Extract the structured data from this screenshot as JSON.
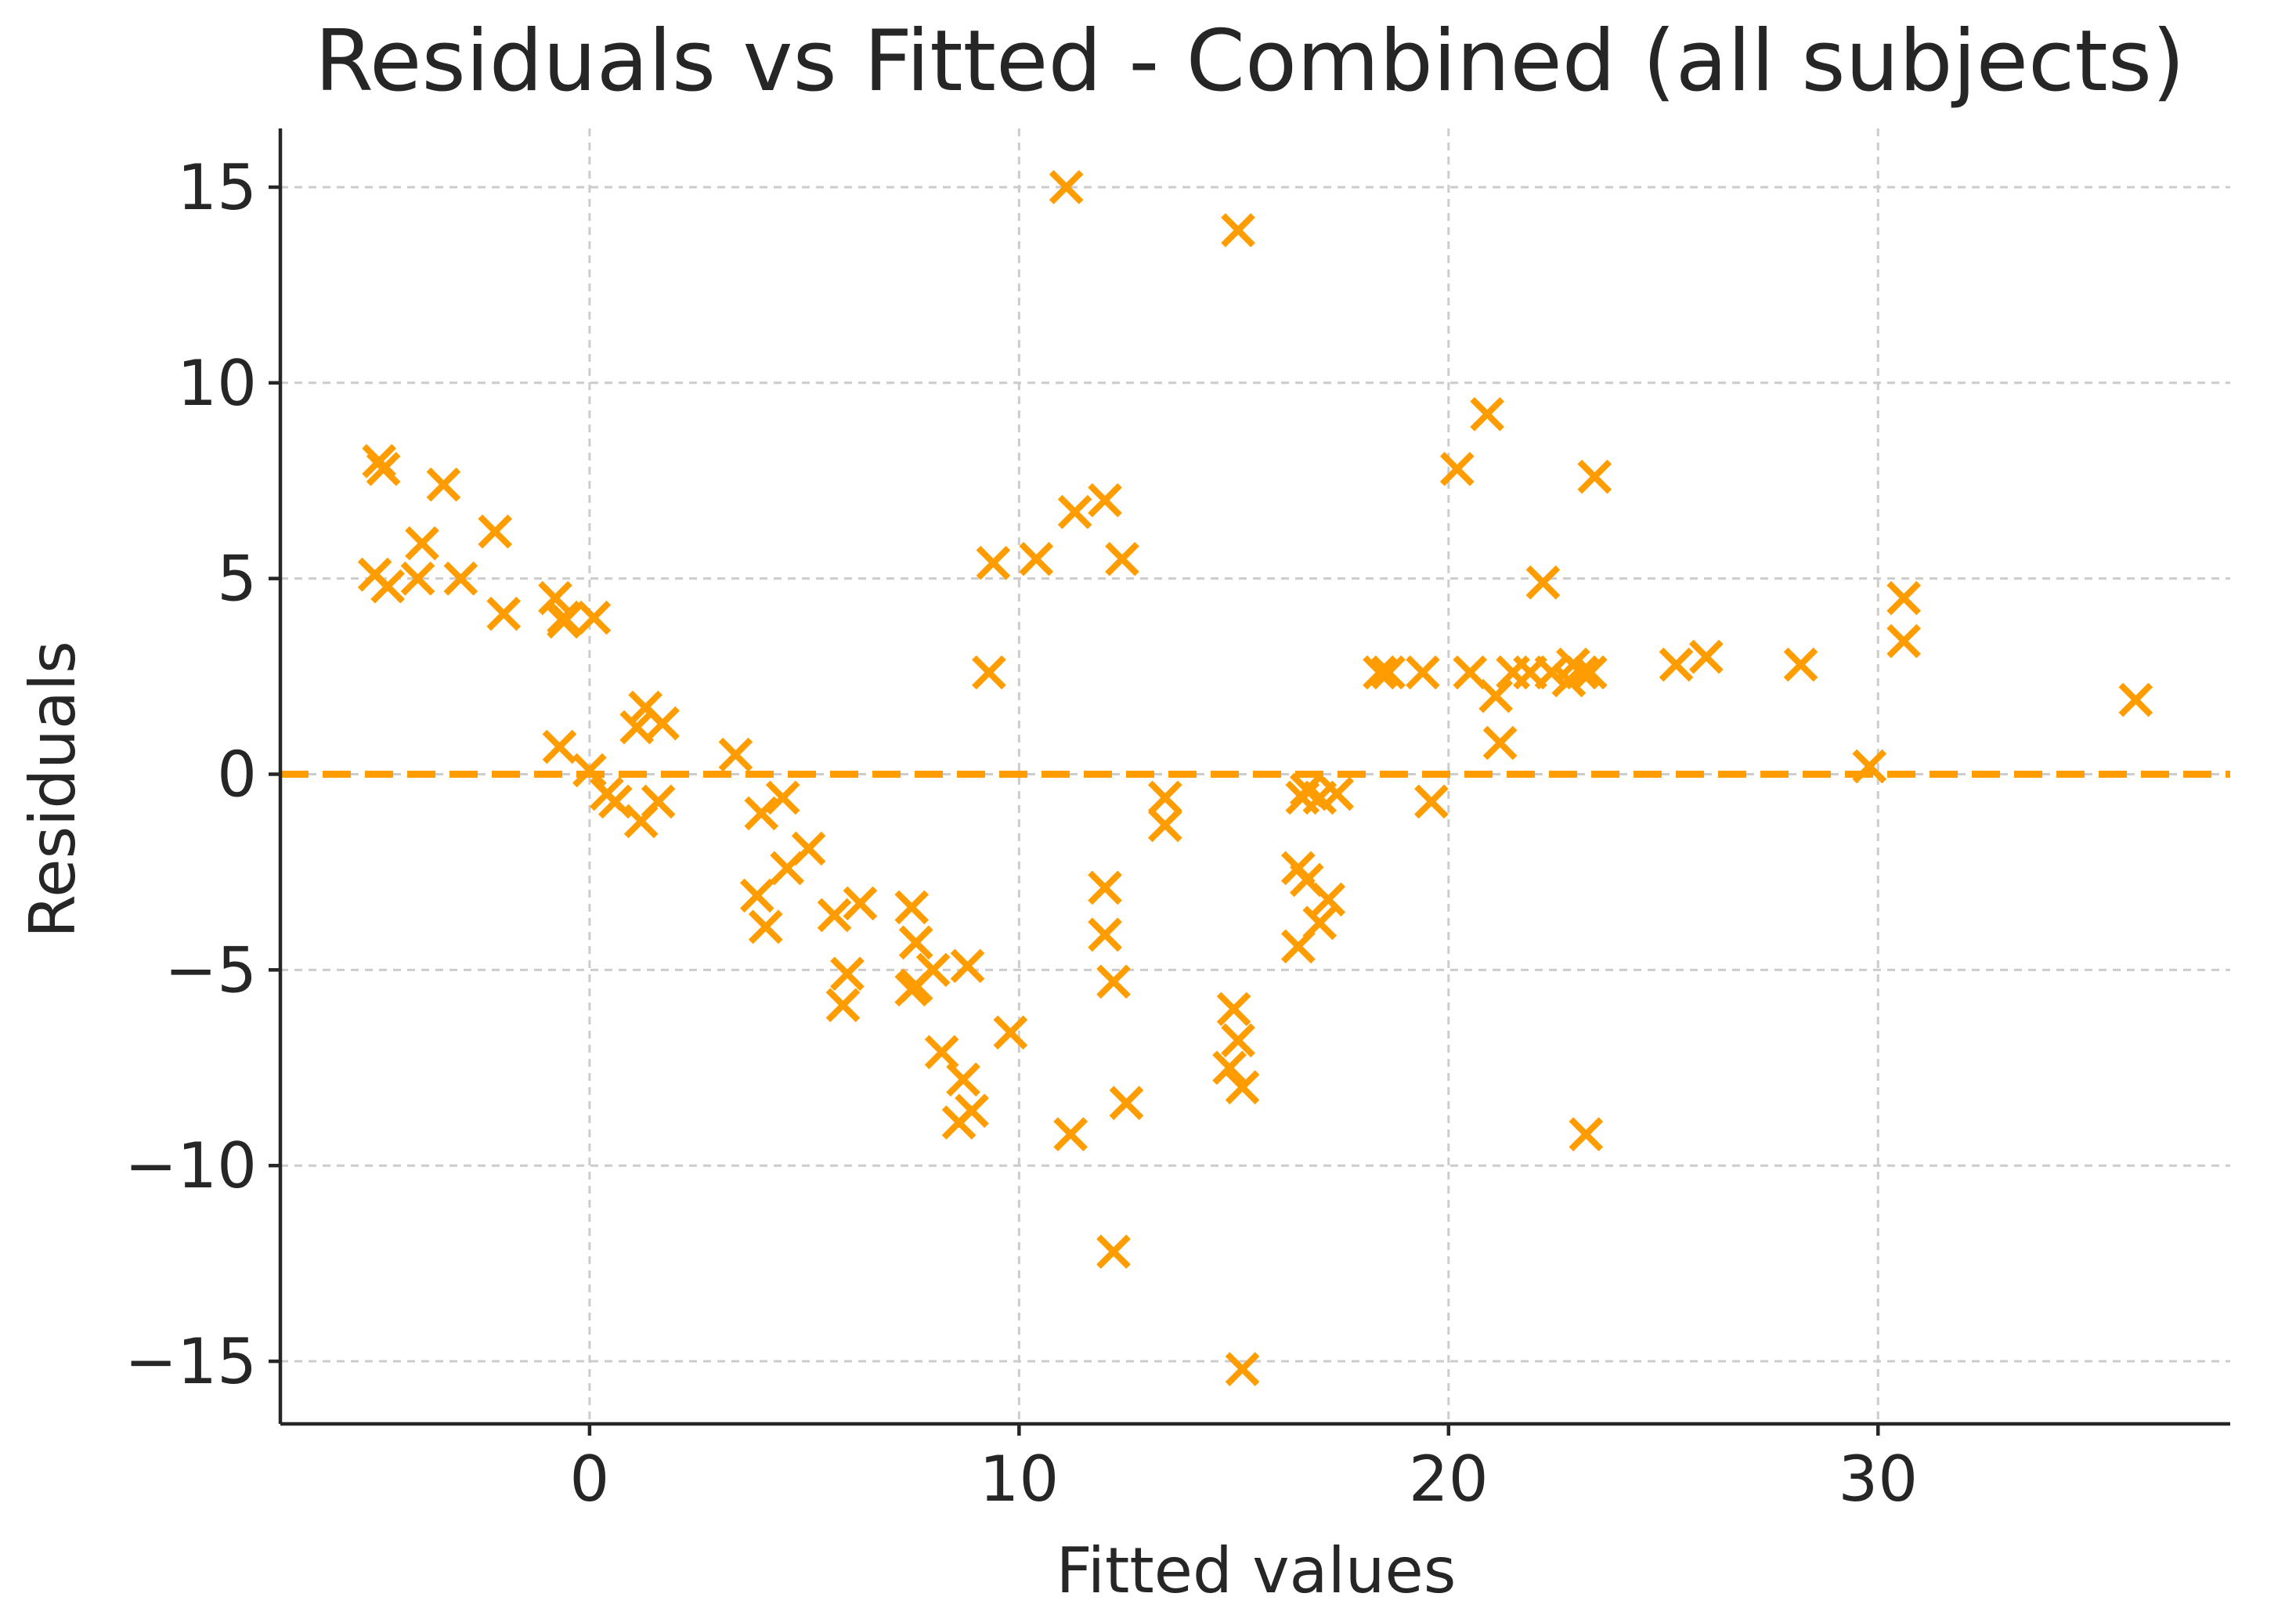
{
  "chart_data": {
    "type": "scatter",
    "title": "Residuals vs Fitted - Combined (all subjects)",
    "xlabel": "Fitted values",
    "ylabel": "Residuals",
    "xlim": [
      -7.2,
      38.2
    ],
    "ylim": [
      -16.6,
      16.5
    ],
    "xticks": [
      0,
      10,
      20,
      30
    ],
    "yticks": [
      15,
      10,
      5,
      0,
      -5,
      -10,
      -15
    ],
    "xtick_labels": [
      "0",
      "10",
      "20",
      "30"
    ],
    "ytick_labels": [
      "15",
      "10",
      "5",
      "0",
      "−5",
      "−10",
      "−15"
    ],
    "grid": true,
    "marker": "x",
    "color": "#ff9d00",
    "reference_line": {
      "y": 0,
      "style": "dashed",
      "color": "#ff9d00"
    },
    "series": [
      {
        "name": "residuals",
        "x": [
          -4.9,
          -4.8,
          -5.0,
          -4.7,
          -3.9,
          -4.0,
          -3.4,
          -3.0,
          -2.2,
          -2.0,
          -0.8,
          -0.6,
          -0.6,
          0.1,
          -0.7,
          0.0,
          0.4,
          1.1,
          1.3,
          1.7,
          0.6,
          1.2,
          1.6,
          3.4,
          4.0,
          4.5,
          5.1,
          4.6,
          3.9,
          4.1,
          5.7,
          6.3,
          6.0,
          5.9,
          7.5,
          7.6,
          8.0,
          7.6,
          7.5,
          8.8,
          8.7,
          8.9,
          8.2,
          8.6,
          9.8,
          9.4,
          9.3,
          10.4,
          11.3,
          12.0,
          12.4,
          11.1,
          11.2,
          12.0,
          12.0,
          12.2,
          12.5,
          12.2,
          13.4,
          13.4,
          15.1,
          15.0,
          15.1,
          14.9,
          15.2,
          16.6,
          16.7,
          17.0,
          17.4,
          16.5,
          16.7,
          17.2,
          17.0,
          16.5,
          15.2,
          18.4,
          18.6,
          19.4,
          19.6,
          20.2,
          20.5,
          20.9,
          21.1,
          21.2,
          21.5,
          21.9,
          22.2,
          22.4,
          22.8,
          22.9,
          23.3,
          23.1,
          23.4,
          23.2,
          25.3,
          26.0,
          28.2,
          29.8,
          30.6,
          30.6,
          36.0
        ],
        "y": [
          8.0,
          7.8,
          5.1,
          4.8,
          5.9,
          5.0,
          7.4,
          5.0,
          6.2,
          4.1,
          4.5,
          4.0,
          3.9,
          4.0,
          0.7,
          0.1,
          -0.5,
          1.2,
          1.7,
          1.3,
          -0.7,
          -1.2,
          -0.7,
          0.5,
          -1.0,
          -0.6,
          -1.9,
          -2.4,
          -3.1,
          -3.9,
          -3.6,
          -3.3,
          -5.1,
          -5.9,
          -3.4,
          -4.3,
          -5.0,
          -5.4,
          -5.5,
          -4.9,
          -7.8,
          -8.6,
          -7.1,
          -8.9,
          -6.6,
          5.4,
          2.6,
          5.5,
          6.7,
          7.0,
          5.5,
          15.0,
          -9.2,
          -2.9,
          -4.1,
          -5.3,
          -8.4,
          -12.2,
          -0.6,
          -1.3,
          13.9,
          -6.0,
          -6.8,
          -7.5,
          -8.0,
          -0.6,
          -0.4,
          -0.6,
          -0.5,
          -2.4,
          -2.7,
          -3.2,
          -3.8,
          -4.4,
          -15.2,
          2.6,
          2.6,
          2.6,
          -0.7,
          7.8,
          2.6,
          9.2,
          2.0,
          0.8,
          2.6,
          2.6,
          4.9,
          2.6,
          2.4,
          2.8,
          2.6,
          2.6,
          7.6,
          -9.2,
          2.8,
          3.0,
          2.8,
          0.2,
          4.5,
          3.4,
          1.9
        ]
      }
    ]
  }
}
